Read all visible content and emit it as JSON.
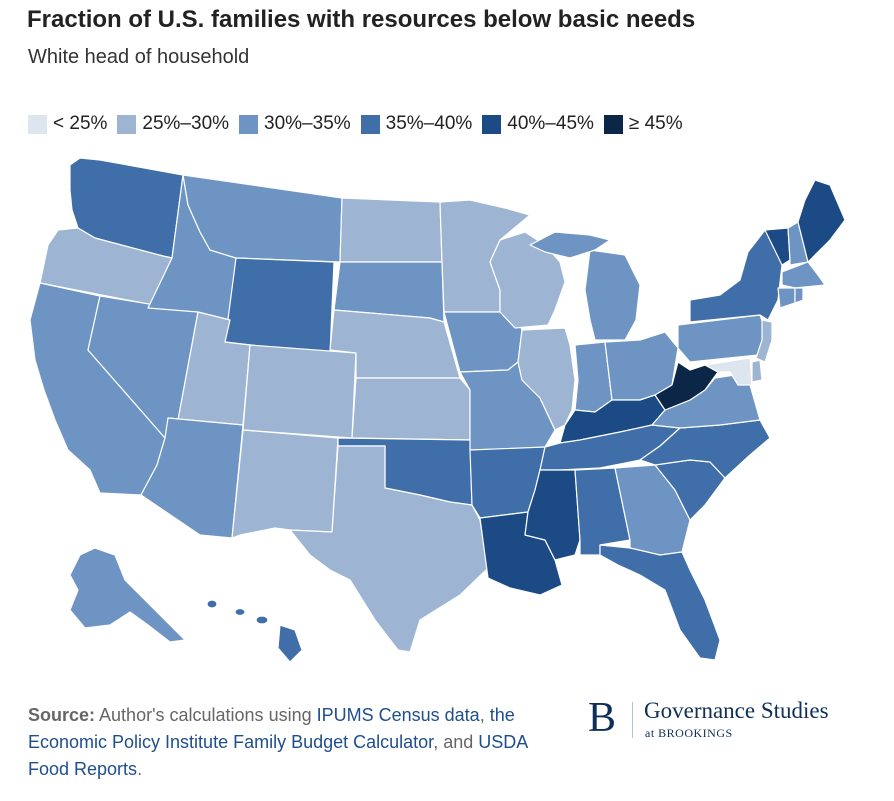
{
  "title": "Fraction of U.S. families with resources below basic needs",
  "subtitle": "White head of household",
  "legend": [
    {
      "label": "< 25%",
      "color": "#dde5ee"
    },
    {
      "label": "25%–30%",
      "color": "#9db5d3"
    },
    {
      "label": "30%–35%",
      "color": "#6d94c2"
    },
    {
      "label": "35%–40%",
      "color": "#3f6ea8"
    },
    {
      "label": "40%–45%",
      "color": "#1b4a85"
    },
    {
      "label": "≥ 45%",
      "color": "#0b2647"
    }
  ],
  "map_data": {
    "type": "choropleth",
    "region": "United States",
    "bins": [
      "< 25%",
      "25%–30%",
      "30%–35%",
      "35%–40%",
      "40%–45%",
      "≥ 45%"
    ],
    "states": [
      {
        "id": "WA",
        "bin": 3
      },
      {
        "id": "OR",
        "bin": 1
      },
      {
        "id": "CA",
        "bin": 2
      },
      {
        "id": "NV",
        "bin": 2
      },
      {
        "id": "ID",
        "bin": 2
      },
      {
        "id": "MT",
        "bin": 2
      },
      {
        "id": "WY",
        "bin": 3
      },
      {
        "id": "UT",
        "bin": 1
      },
      {
        "id": "AZ",
        "bin": 2
      },
      {
        "id": "CO",
        "bin": 1
      },
      {
        "id": "NM",
        "bin": 1
      },
      {
        "id": "ND",
        "bin": 1
      },
      {
        "id": "SD",
        "bin": 2
      },
      {
        "id": "NE",
        "bin": 1
      },
      {
        "id": "KS",
        "bin": 1
      },
      {
        "id": "OK",
        "bin": 3
      },
      {
        "id": "TX",
        "bin": 1
      },
      {
        "id": "MN",
        "bin": 1
      },
      {
        "id": "IA",
        "bin": 2
      },
      {
        "id": "MO",
        "bin": 2
      },
      {
        "id": "AR",
        "bin": 3
      },
      {
        "id": "LA",
        "bin": 4
      },
      {
        "id": "WI",
        "bin": 1
      },
      {
        "id": "IL",
        "bin": 1
      },
      {
        "id": "MI",
        "bin": 2
      },
      {
        "id": "IN",
        "bin": 2
      },
      {
        "id": "OH",
        "bin": 2
      },
      {
        "id": "KY",
        "bin": 4
      },
      {
        "id": "TN",
        "bin": 3
      },
      {
        "id": "MS",
        "bin": 4
      },
      {
        "id": "AL",
        "bin": 3
      },
      {
        "id": "GA",
        "bin": 2
      },
      {
        "id": "FL",
        "bin": 3
      },
      {
        "id": "SC",
        "bin": 3
      },
      {
        "id": "NC",
        "bin": 3
      },
      {
        "id": "VA",
        "bin": 2
      },
      {
        "id": "WV",
        "bin": 5
      },
      {
        "id": "PA",
        "bin": 2
      },
      {
        "id": "NY",
        "bin": 3
      },
      {
        "id": "VT",
        "bin": 4
      },
      {
        "id": "NH",
        "bin": 2
      },
      {
        "id": "ME",
        "bin": 4
      },
      {
        "id": "MA",
        "bin": 2
      },
      {
        "id": "CT",
        "bin": 2
      },
      {
        "id": "RI",
        "bin": 2
      },
      {
        "id": "NJ",
        "bin": 1
      },
      {
        "id": "DE",
        "bin": 1
      },
      {
        "id": "MD",
        "bin": 0
      },
      {
        "id": "AK",
        "bin": 2
      },
      {
        "id": "HI",
        "bin": 3
      }
    ]
  },
  "source": {
    "label": "Source:",
    "text1": " Author's calculations using ",
    "link1": "IPUMS Census data",
    "text2": ", ",
    "link2": "the Economic Policy Institute Family Budget Calculator",
    "text3": ", and ",
    "link3": "USDA Food Reports",
    "text4": "."
  },
  "brand": {
    "letter": "B",
    "name": "Governance Studies",
    "sub": "at BROOKINGS"
  }
}
